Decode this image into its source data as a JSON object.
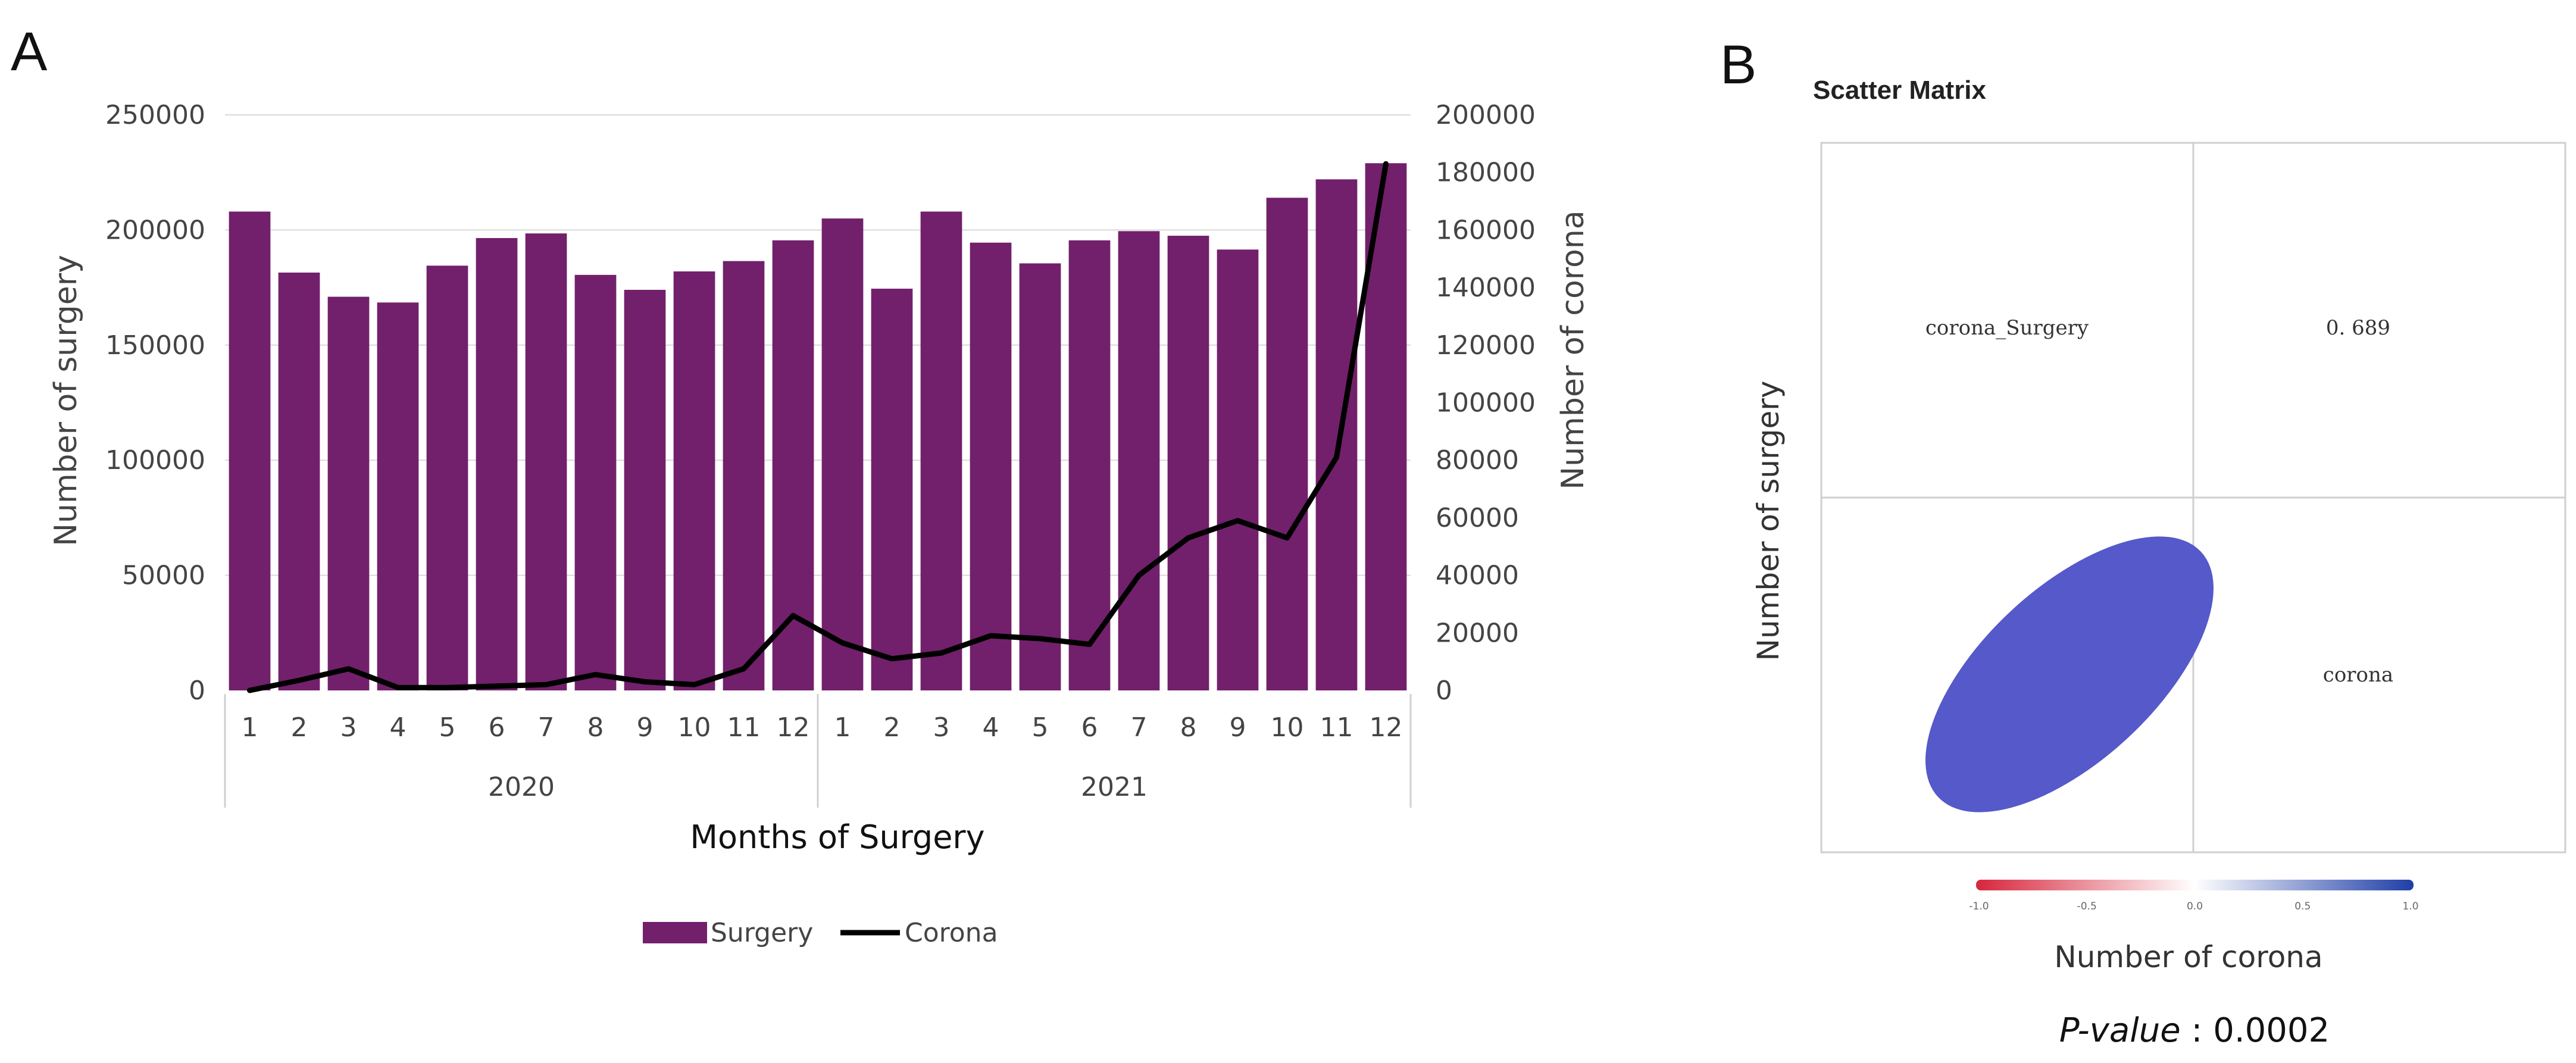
{
  "panel_a_label": "A",
  "panel_b_label": "B",
  "chart_data": [
    {
      "type": "bar+line",
      "title": "",
      "xlabel": "Months of Surgery",
      "ylabel_left": "Number of  surgery",
      "ylabel_right": "Number of corona",
      "ylim_left": [
        0,
        250000
      ],
      "ylim_right": [
        0,
        200000
      ],
      "yticks_left": [
        "0",
        "50000",
        "100000",
        "150000",
        "200000",
        "250000"
      ],
      "yticks_right": [
        "0",
        "20000",
        "40000",
        "60000",
        "80000",
        "100000",
        "120000",
        "140000",
        "160000",
        "180000",
        "200000"
      ],
      "years": [
        "2020",
        "2021"
      ],
      "categories": [
        "1",
        "2",
        "3",
        "4",
        "5",
        "6",
        "7",
        "8",
        "9",
        "10",
        "11",
        "12",
        "1",
        "2",
        "3",
        "4",
        "5",
        "6",
        "7",
        "8",
        "9",
        "10",
        "11",
        "12"
      ],
      "series": [
        {
          "name": "Surgery",
          "type": "bar",
          "axis": "left",
          "color": "#72206b",
          "values": [
            208000,
            181500,
            171000,
            168500,
            184500,
            196500,
            198500,
            180500,
            174000,
            182000,
            186500,
            195500,
            205000,
            174500,
            208000,
            194500,
            185500,
            195500,
            199500,
            197500,
            191500,
            214000,
            222000,
            229000
          ]
        },
        {
          "name": "Corona",
          "type": "line",
          "axis": "right",
          "color": "#000000",
          "values": [
            0,
            3500,
            7500,
            1000,
            1000,
            1500,
            2000,
            5500,
            3000,
            2000,
            7500,
            26000,
            16500,
            11000,
            13000,
            19000,
            18000,
            16000,
            40000,
            53000,
            59000,
            53000,
            81000,
            183000
          ]
        }
      ],
      "legend": [
        "Surgery",
        "Corona"
      ],
      "legend_position": "bottom-center"
    },
    {
      "type": "scatter-matrix",
      "title": "Scatter Matrix",
      "cells": {
        "top_left": "corona_Surgery",
        "top_right": "0. 689",
        "bottom_right": "corona"
      },
      "correlation": 0.689,
      "ellipse_color": "#5559c9",
      "xlabel": "Number of corona",
      "ylabel": "Number of  surgery",
      "colorbar_ticks": [
        "-1.0",
        "-0.5",
        "0.0",
        "0.5",
        "1.0"
      ],
      "colorbar_range": [
        -1.0,
        1.0
      ],
      "colorbar_colors": [
        "#d7263d",
        "#ffffff",
        "#1f3ea8"
      ]
    }
  ],
  "pvalue": {
    "label": "P-value",
    "separator": " : ",
    "value": "0.0002"
  }
}
